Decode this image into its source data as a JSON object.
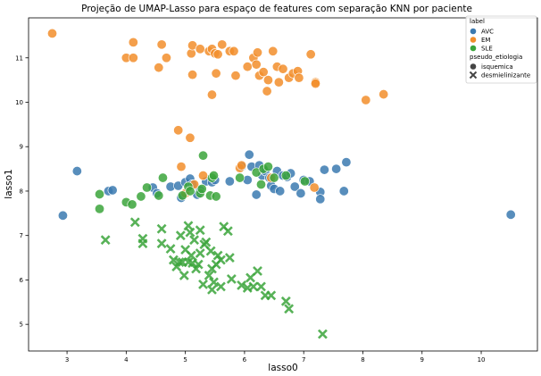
{
  "chart_data": {
    "type": "scatter",
    "title": "Projeção de UMAP-Lasso para espaço de features com separação KNN por paciente",
    "xlabel": "lasso0",
    "ylabel": "lasso1",
    "xlim": [
      2.35,
      10.95
    ],
    "ylim": [
      4.4,
      11.9
    ],
    "xticks": [
      3,
      4,
      5,
      6,
      7,
      8,
      9,
      10
    ],
    "yticks": [
      5,
      6,
      7,
      8,
      9,
      10,
      11
    ],
    "grid": false,
    "legend": {
      "placement": "top-right",
      "hue_title": "label",
      "style_title": "pseudo_etiologia",
      "hue_entries": [
        {
          "name": "AVC",
          "color": "#3b7ab0"
        },
        {
          "name": "EM",
          "color": "#f28e2b"
        },
        {
          "name": "SLE",
          "color": "#3ba53b"
        }
      ],
      "style_entries": [
        {
          "name": "isquemica",
          "marker": "circle"
        },
        {
          "name": "desmielinizante",
          "marker": "x"
        }
      ]
    },
    "series": [
      {
        "name": "AVC",
        "marker": "circle",
        "color": "#3b7ab0",
        "points": [
          [
            2.93,
            7.45
          ],
          [
            3.17,
            8.45
          ],
          [
            3.7,
            8.0
          ],
          [
            3.77,
            8.02
          ],
          [
            4.45,
            8.08
          ],
          [
            4.52,
            7.95
          ],
          [
            4.75,
            8.1
          ],
          [
            4.88,
            8.12
          ],
          [
            4.93,
            7.85
          ],
          [
            5.0,
            8.2
          ],
          [
            5.08,
            8.28
          ],
          [
            5.12,
            8.15
          ],
          [
            5.2,
            7.92
          ],
          [
            5.25,
            8.02
          ],
          [
            5.35,
            8.22
          ],
          [
            5.45,
            8.2
          ],
          [
            5.5,
            8.25
          ],
          [
            5.75,
            8.22
          ],
          [
            5.95,
            8.55
          ],
          [
            6.05,
            8.25
          ],
          [
            6.08,
            8.82
          ],
          [
            6.12,
            8.55
          ],
          [
            6.2,
            7.92
          ],
          [
            6.25,
            8.58
          ],
          [
            6.3,
            8.35
          ],
          [
            6.35,
            8.45
          ],
          [
            6.42,
            8.3
          ],
          [
            6.45,
            8.12
          ],
          [
            6.5,
            8.05
          ],
          [
            6.55,
            8.45
          ],
          [
            6.6,
            8.0
          ],
          [
            6.65,
            8.35
          ],
          [
            6.72,
            8.32
          ],
          [
            6.78,
            8.4
          ],
          [
            6.85,
            8.1
          ],
          [
            6.95,
            7.95
          ],
          [
            7.0,
            8.25
          ],
          [
            7.1,
            8.22
          ],
          [
            7.28,
            7.98
          ],
          [
            7.28,
            7.82
          ],
          [
            7.35,
            8.48
          ],
          [
            7.55,
            8.5
          ],
          [
            7.68,
            8.0
          ],
          [
            7.72,
            8.65
          ],
          [
            10.5,
            7.47
          ]
        ]
      },
      {
        "name": "EM",
        "marker": "circle",
        "color": "#f28e2b",
        "points": [
          [
            2.75,
            11.55
          ],
          [
            4.0,
            11.0
          ],
          [
            4.12,
            11.35
          ],
          [
            4.12,
            11.0
          ],
          [
            4.55,
            10.78
          ],
          [
            4.6,
            11.3
          ],
          [
            4.68,
            11.0
          ],
          [
            4.88,
            9.37
          ],
          [
            4.93,
            8.55
          ],
          [
            5.0,
            7.95
          ],
          [
            5.08,
            9.2
          ],
          [
            5.1,
            11.1
          ],
          [
            5.12,
            10.62
          ],
          [
            5.12,
            11.28
          ],
          [
            5.15,
            8.15
          ],
          [
            5.25,
            11.2
          ],
          [
            5.3,
            8.35
          ],
          [
            5.4,
            11.15
          ],
          [
            5.45,
            11.2
          ],
          [
            5.45,
            10.17
          ],
          [
            5.5,
            11.1
          ],
          [
            5.52,
            10.65
          ],
          [
            5.55,
            11.08
          ],
          [
            5.62,
            11.3
          ],
          [
            5.75,
            11.15
          ],
          [
            5.82,
            11.15
          ],
          [
            5.85,
            10.6
          ],
          [
            5.92,
            8.52
          ],
          [
            5.95,
            8.58
          ],
          [
            6.05,
            10.8
          ],
          [
            6.15,
            11.0
          ],
          [
            6.2,
            10.85
          ],
          [
            6.22,
            11.12
          ],
          [
            6.25,
            10.6
          ],
          [
            6.32,
            10.68
          ],
          [
            6.38,
            10.25
          ],
          [
            6.4,
            10.5
          ],
          [
            6.45,
            8.3
          ],
          [
            6.48,
            11.15
          ],
          [
            6.55,
            10.8
          ],
          [
            6.58,
            10.45
          ],
          [
            6.65,
            10.75
          ],
          [
            6.75,
            10.55
          ],
          [
            6.82,
            10.65
          ],
          [
            6.9,
            10.7
          ],
          [
            6.92,
            10.55
          ],
          [
            7.12,
            11.08
          ],
          [
            7.18,
            8.08
          ],
          [
            7.2,
            10.45
          ],
          [
            7.2,
            10.42
          ],
          [
            8.05,
            10.05
          ],
          [
            8.35,
            10.18
          ]
        ]
      },
      {
        "name": "SLE",
        "marker": "circle",
        "color": "#3ba53b",
        "points": [
          [
            3.55,
            7.93
          ],
          [
            3.55,
            7.6
          ],
          [
            4.0,
            7.75
          ],
          [
            4.1,
            7.7
          ],
          [
            4.25,
            7.88
          ],
          [
            4.35,
            8.08
          ],
          [
            4.55,
            7.9
          ],
          [
            4.62,
            8.3
          ],
          [
            4.95,
            7.9
          ],
          [
            5.05,
            8.1
          ],
          [
            5.08,
            8.0
          ],
          [
            5.25,
            7.95
          ],
          [
            5.28,
            8.05
          ],
          [
            5.3,
            8.8
          ],
          [
            5.42,
            7.9
          ],
          [
            5.45,
            8.3
          ],
          [
            5.48,
            8.35
          ],
          [
            5.52,
            7.88
          ],
          [
            5.92,
            8.3
          ],
          [
            6.2,
            8.42
          ],
          [
            6.28,
            8.15
          ],
          [
            6.32,
            8.5
          ],
          [
            6.4,
            8.55
          ],
          [
            6.5,
            8.3
          ],
          [
            6.7,
            8.35
          ],
          [
            7.02,
            8.22
          ]
        ]
      },
      {
        "name": "SLE",
        "marker": "x",
        "color": "#3ba53b",
        "points": [
          [
            3.65,
            6.9
          ],
          [
            4.15,
            7.3
          ],
          [
            4.28,
            6.93
          ],
          [
            4.28,
            6.82
          ],
          [
            4.6,
            6.82
          ],
          [
            4.6,
            7.15
          ],
          [
            4.75,
            6.7
          ],
          [
            4.8,
            6.45
          ],
          [
            4.85,
            6.3
          ],
          [
            4.9,
            6.4
          ],
          [
            4.92,
            7.0
          ],
          [
            4.95,
            6.4
          ],
          [
            4.98,
            6.1
          ],
          [
            5.0,
            6.68
          ],
          [
            5.05,
            7.22
          ],
          [
            5.05,
            6.4
          ],
          [
            5.08,
            7.07
          ],
          [
            5.1,
            6.55
          ],
          [
            5.12,
            6.38
          ],
          [
            5.15,
            6.9
          ],
          [
            5.18,
            6.25
          ],
          [
            5.22,
            6.35
          ],
          [
            5.25,
            7.12
          ],
          [
            5.25,
            6.6
          ],
          [
            5.3,
            5.9
          ],
          [
            5.32,
            6.8
          ],
          [
            5.35,
            6.85
          ],
          [
            5.4,
            6.1
          ],
          [
            5.43,
            6.65
          ],
          [
            5.45,
            5.78
          ],
          [
            5.45,
            6.25
          ],
          [
            5.48,
            5.95
          ],
          [
            5.52,
            6.35
          ],
          [
            5.55,
            6.55
          ],
          [
            5.6,
            6.45
          ],
          [
            5.6,
            5.85
          ],
          [
            5.65,
            7.2
          ],
          [
            5.72,
            7.1
          ],
          [
            5.75,
            6.5
          ],
          [
            5.78,
            6.02
          ],
          [
            5.95,
            5.88
          ],
          [
            6.05,
            5.82
          ],
          [
            6.1,
            6.05
          ],
          [
            6.15,
            5.85
          ],
          [
            6.22,
            6.2
          ],
          [
            6.28,
            5.85
          ],
          [
            6.35,
            5.65
          ],
          [
            6.45,
            5.65
          ],
          [
            6.7,
            5.52
          ],
          [
            6.75,
            5.35
          ],
          [
            7.32,
            4.78
          ]
        ]
      }
    ]
  }
}
